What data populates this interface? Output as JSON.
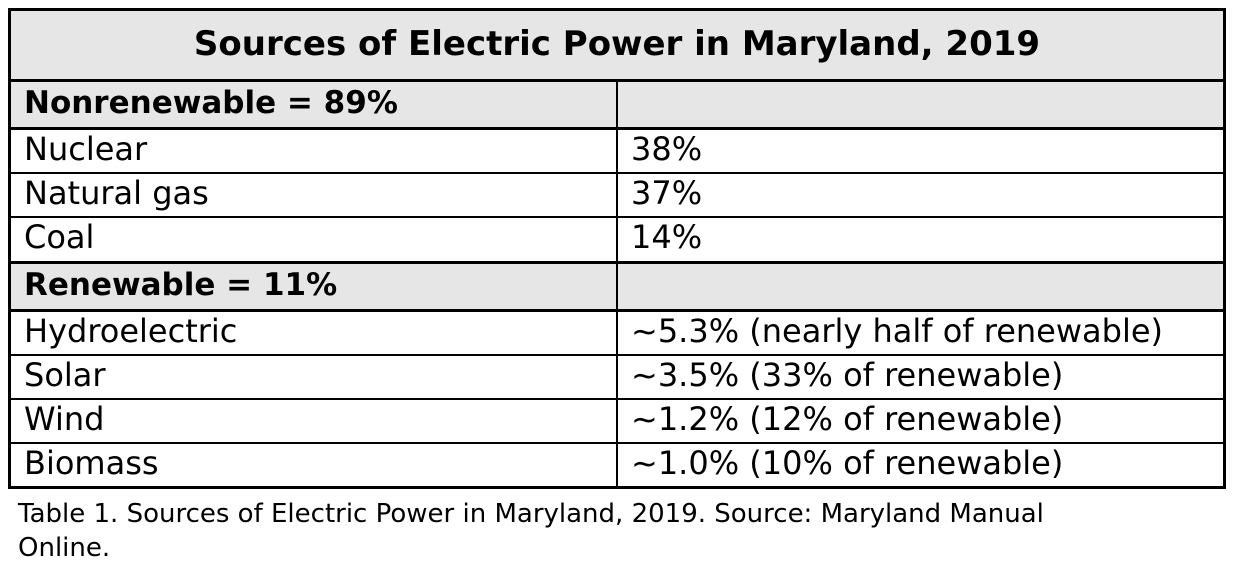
{
  "table": {
    "title": "Sources of Electric Power in Maryland, 2019",
    "sections": [
      {
        "header": "Nonrenewable = 89%",
        "rows": [
          {
            "source": "Nuclear",
            "value": "38%"
          },
          {
            "source": "Natural gas",
            "value": "37%"
          },
          {
            "source": "Coal",
            "value": "14%"
          }
        ]
      },
      {
        "header": "Renewable = 11%",
        "rows": [
          {
            "source": "Hydroelectric",
            "value": "~5.3% (nearly half of renewable)"
          },
          {
            "source": "Solar",
            "value": "~3.5% (33% of renewable)"
          },
          {
            "source": "Wind",
            "value": "~1.2% (12% of renewable)"
          },
          {
            "source": "Biomass",
            "value": "~1.0% (10% of renewable)"
          }
        ]
      }
    ]
  },
  "caption": {
    "line1": "Table 1. Sources of Electric Power in Maryland, 2019. Source: Maryland Manual",
    "line2": "Online."
  },
  "colors": {
    "header_bg": "#e6e6e6",
    "row_bg": "#ffffff",
    "border": "#000000",
    "text": "#000000"
  },
  "chart_data": {
    "type": "table",
    "title": "Sources of Electric Power in Maryland, 2019",
    "categories": [
      "Nuclear",
      "Natural gas",
      "Coal",
      "Hydroelectric",
      "Solar",
      "Wind",
      "Biomass"
    ],
    "values": [
      38,
      37,
      14,
      5.3,
      3.5,
      1.2,
      1.0
    ],
    "groups": {
      "Nonrenewable": 89,
      "Renewable": 11
    }
  }
}
